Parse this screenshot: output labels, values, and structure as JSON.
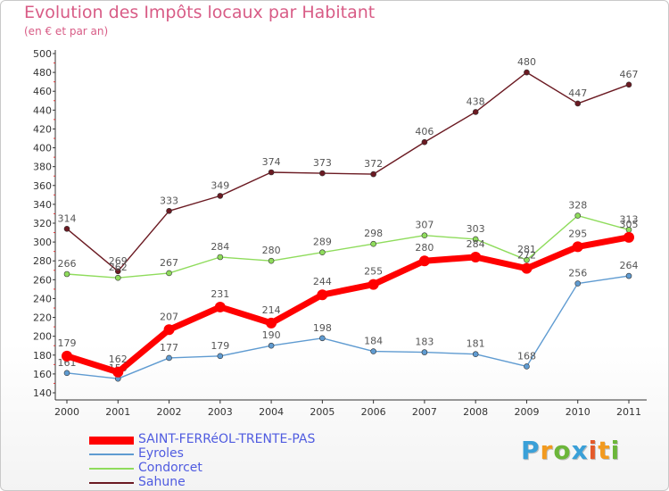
{
  "chart_data": {
    "type": "line",
    "title": "Evolution des Impôts locaux par Habitant",
    "subtitle": "(en € et par an)",
    "x": [
      "2000",
      "2001",
      "2002",
      "2003",
      "2004",
      "2005",
      "2006",
      "2007",
      "2008",
      "2009",
      "2010",
      "2011"
    ],
    "ylim": [
      140,
      500
    ],
    "yticks": [
      140,
      160,
      180,
      200,
      220,
      240,
      260,
      280,
      300,
      320,
      340,
      360,
      380,
      400,
      420,
      440,
      460,
      480,
      500
    ],
    "grid": false,
    "legend_position": "bottom-left",
    "series": [
      {
        "name": "Sahune",
        "color": "#6b1a22",
        "values": [
          314,
          269,
          333,
          349,
          374,
          373,
          372,
          406,
          438,
          480,
          447,
          467
        ]
      },
      {
        "name": "Condorcet",
        "color": "#8fdc5c",
        "values": [
          266,
          262,
          267,
          284,
          280,
          289,
          298,
          307,
          303,
          281,
          328,
          313
        ]
      },
      {
        "name": "Eyroles",
        "color": "#5f9bd1",
        "values": [
          161,
          155,
          177,
          179,
          190,
          198,
          184,
          183,
          181,
          168,
          256,
          264
        ]
      },
      {
        "name": "SAINT-FERRéOL-TRENTE-PAS",
        "color": "#ff0000",
        "values": [
          179,
          162,
          207,
          231,
          214,
          244,
          255,
          280,
          284,
          272,
          295,
          305
        ]
      }
    ]
  },
  "legend": [
    {
      "label": "SAINT-FERRéOL-TRENTE-PAS",
      "color": "#ff0000"
    },
    {
      "label": "Eyroles",
      "color": "#5f9bd1"
    },
    {
      "label": "Condorcet",
      "color": "#8fdc5c"
    },
    {
      "label": "Sahune",
      "color": "#6b1a22"
    }
  ],
  "logo": {
    "text": "Proxiti"
  }
}
